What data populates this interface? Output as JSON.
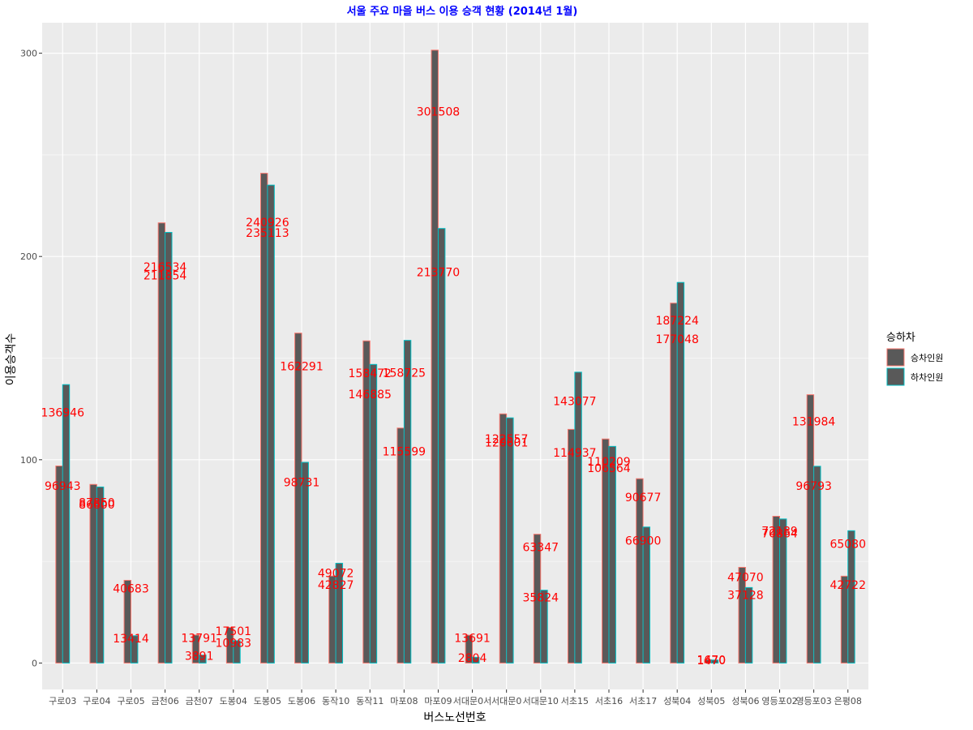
{
  "chart_data": {
    "type": "bar",
    "title": "서울 주요 마을 버스 이용 승객 현황 (2014년 1월)",
    "xlabel": "버스노선번호",
    "ylabel": "이용승객수",
    "ylim": [
      -13,
      315
    ],
    "yticks": [
      0,
      100,
      200,
      300
    ],
    "y_unit_divisor": 1000,
    "grid": true,
    "legend": {
      "title": "승하차",
      "position": "right"
    },
    "categories": [
      "구로03",
      "구로04",
      "구로05",
      "금천06",
      "금천07",
      "도봉04",
      "도봉05",
      "도봉06",
      "동작10",
      "동작11",
      "마포08",
      "마포09",
      "서대문0서",
      "서대문0",
      "서대문10",
      "서초15",
      "서초16",
      "서초17",
      "성북04",
      "성북05",
      "성북06",
      "영등포02",
      "영등포03",
      "은평08"
    ],
    "series": [
      {
        "name": "승차인원",
        "outline": "#f8766d",
        "values": [
          96943,
          87850,
          40683,
          216534,
          13791,
          17501,
          240926,
          162291,
          42827,
          158472,
          115599,
          301508,
          13691,
          122557,
          63347,
          114937,
          110209,
          90677,
          177048,
          1670,
          47070,
          72189,
          131984,
          42722
        ]
      },
      {
        "name": "하차인원",
        "outline": "#00bfc4",
        "values": [
          136946,
          86600,
          13414,
          211854,
          3891,
          10983,
          235113,
          98731,
          49072,
          146885,
          158725,
          213770,
          2804,
          120601,
          35824,
          143077,
          106564,
          66900,
          187224,
          1470,
          37128,
          70864,
          96793,
          65080
        ]
      }
    ],
    "bar_fill": "#595959",
    "label_color": "#ff0000",
    "title_color": "#0000ff"
  }
}
